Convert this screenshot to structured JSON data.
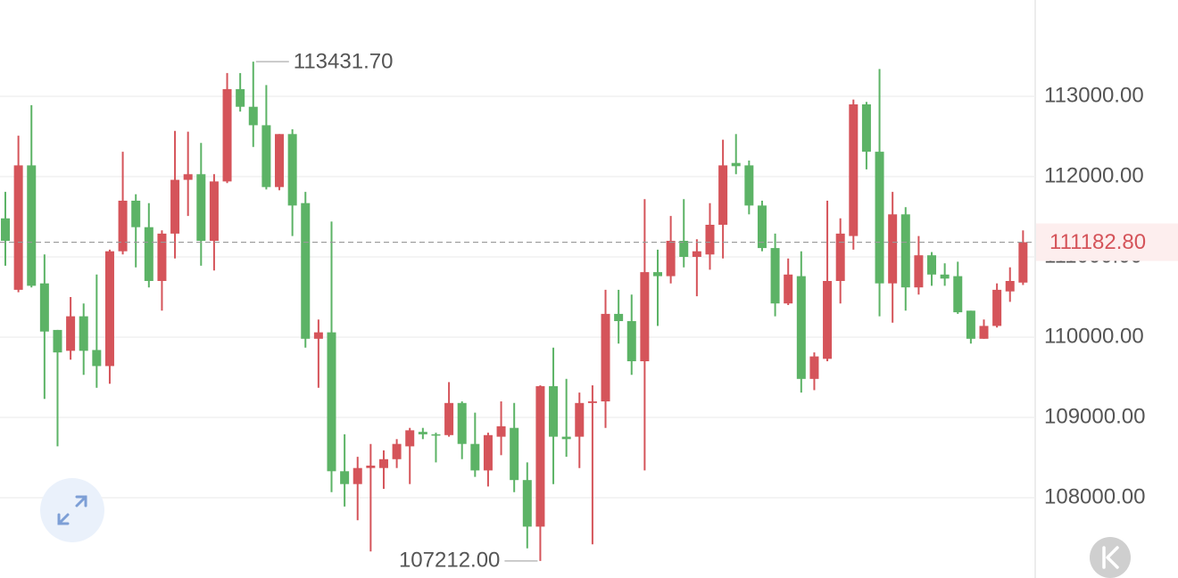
{
  "chart_data": {
    "type": "candlestick",
    "open": [
      111480,
      110590,
      112140,
      110670,
      110090,
      109830,
      110260,
      109840,
      109640,
      111070,
      111700,
      111370,
      110700,
      111290,
      111960,
      112030,
      111200,
      111940,
      113090,
      112870,
      112640,
      111870,
      112530,
      111670,
      109980,
      110060,
      108330,
      108170,
      108370,
      108370,
      108480,
      108640,
      108820,
      108790,
      108780,
      109180,
      108670,
      108340,
      108760,
      108870,
      108220,
      107640,
      109390,
      108760,
      108760,
      109180,
      109200,
      110290,
      110200,
      109700,
      110810,
      110760,
      111200,
      111000,
      111030,
      111400,
      112170,
      112140,
      111640,
      111110,
      110420,
      110760,
      109480,
      109730,
      110700,
      111260,
      112900,
      112310,
      110670,
      111530,
      110620,
      111020,
      110780,
      110760,
      110330,
      109980,
      110140,
      110570,
      110680
    ],
    "high": [
      111810,
      112510,
      112890,
      111030,
      110090,
      110500,
      110420,
      110780,
      111090,
      112310,
      111780,
      111670,
      111330,
      112570,
      112560,
      112420,
      112030,
      113290,
      113290,
      113431.7,
      113140,
      112530,
      112590,
      111810,
      110220,
      111440,
      108790,
      108510,
      108670,
      108590,
      108730,
      108870,
      108870,
      108810,
      109440,
      109200,
      109060,
      108810,
      109200,
      109180,
      108440,
      109400,
      109870,
      109480,
      109310,
      109400,
      110590,
      110590,
      110530,
      111720,
      111090,
      111510,
      111720,
      111220,
      111670,
      112460,
      112530,
      112200,
      111700,
      111290,
      110980,
      111070,
      109810,
      111700,
      111480,
      112960,
      112930,
      113340,
      111810,
      111620,
      111260,
      111060,
      110920,
      110940,
      110330,
      110220,
      110670,
      110870,
      111330
    ],
    "low": [
      110890,
      110560,
      110620,
      109230,
      108640,
      109720,
      109530,
      109370,
      109420,
      111030,
      110870,
      110620,
      110330,
      110980,
      111510,
      110890,
      110830,
      111920,
      112810,
      112370,
      111840,
      111830,
      111260,
      109870,
      109370,
      108070,
      107890,
      107720,
      107330,
      108110,
      108370,
      108170,
      108730,
      108440,
      108760,
      108480,
      108260,
      108140,
      108530,
      108070,
      107370,
      107212,
      108170,
      108510,
      108370,
      107420,
      108870,
      109920,
      109530,
      108340,
      110140,
      110670,
      110870,
      110510,
      110840,
      110980,
      112030,
      111530,
      111070,
      110260,
      110400,
      109310,
      109340,
      109700,
      110420,
      111090,
      112090,
      110260,
      110180,
      110330,
      110530,
      110640,
      110640,
      110290,
      109920,
      109980,
      110120,
      110440,
      110650
    ],
    "close": [
      111200,
      112140,
      110640,
      110070,
      109810,
      110260,
      109830,
      109640,
      111070,
      111700,
      111370,
      110700,
      111290,
      111960,
      112030,
      111200,
      111940,
      113090,
      112870,
      112640,
      111870,
      112530,
      111640,
      109980,
      110060,
      108330,
      108170,
      108370,
      108400,
      108480,
      108670,
      108840,
      108790,
      108780,
      109180,
      108670,
      108340,
      108780,
      108890,
      108220,
      107640,
      109390,
      108760,
      108730,
      109180,
      109200,
      110290,
      110200,
      109700,
      110810,
      110760,
      111200,
      111000,
      111070,
      111400,
      112140,
      112130,
      111640,
      111110,
      110420,
      110780,
      109480,
      109760,
      110700,
      111290,
      112900,
      112310,
      110670,
      111530,
      110620,
      111020,
      110780,
      110730,
      110310,
      109980,
      110140,
      110590,
      110700,
      111182.8
    ],
    "up_color": "#d5545a",
    "down_color": "#5cb366",
    "ylim": [
      107000,
      114200
    ],
    "yticks": [
      {
        "value": 108000,
        "label": "108000.00"
      },
      {
        "value": 109000,
        "label": "109000.00"
      },
      {
        "value": 110000,
        "label": "110000.00"
      },
      {
        "value": 111000,
        "label": "111000.00"
      },
      {
        "value": 112000,
        "label": "112000.00"
      },
      {
        "value": 113000,
        "label": "113000.00"
      }
    ],
    "grid": true,
    "high_marker": {
      "value": 113431.7,
      "label": "113431.70"
    },
    "low_marker": {
      "value": 107212,
      "label": "107212.00"
    },
    "last_price": {
      "value": 111182.8,
      "label": "111182.80"
    }
  }
}
